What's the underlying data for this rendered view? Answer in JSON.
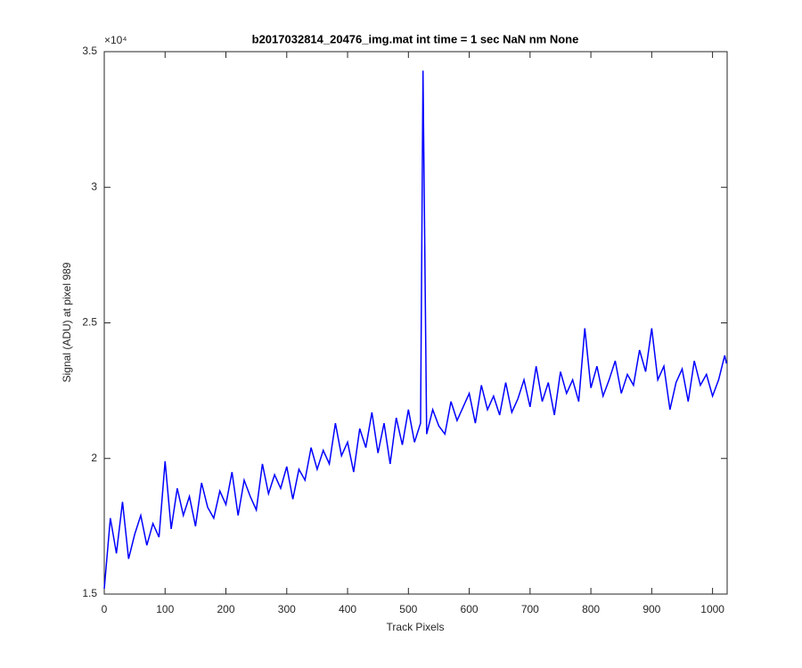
{
  "chart_data": {
    "type": "line",
    "title": "b2017032814_20476_img.mat int time = 1 sec  NaN nm None",
    "x_label": "Track Pixels",
    "y_label": "Signal (ADU) at pixel 989",
    "y_exponent_label": "×10⁴",
    "xlim": [
      0,
      1024
    ],
    "ylim": [
      15000,
      35000
    ],
    "xticks": [
      0,
      100,
      200,
      300,
      400,
      500,
      600,
      700,
      800,
      900,
      1000
    ],
    "yticks": [
      {
        "value": 15000,
        "label": "1.5"
      },
      {
        "value": 20000,
        "label": "2"
      },
      {
        "value": 25000,
        "label": "2.5"
      },
      {
        "value": 30000,
        "label": "3"
      },
      {
        "value": 35000,
        "label": "3.5"
      }
    ],
    "grid": false,
    "series": [
      {
        "color": "#0000ff",
        "x": [
          0,
          10,
          20,
          30,
          40,
          50,
          60,
          70,
          80,
          90,
          100,
          110,
          120,
          130,
          140,
          150,
          160,
          170,
          180,
          190,
          200,
          210,
          220,
          230,
          240,
          250,
          260,
          270,
          280,
          290,
          300,
          310,
          320,
          330,
          340,
          350,
          360,
          370,
          380,
          390,
          400,
          410,
          420,
          430,
          440,
          450,
          460,
          470,
          480,
          490,
          500,
          510,
          520,
          524,
          530,
          540,
          550,
          560,
          570,
          580,
          590,
          600,
          610,
          620,
          630,
          640,
          650,
          660,
          670,
          680,
          690,
          700,
          710,
          720,
          730,
          740,
          750,
          760,
          770,
          780,
          790,
          800,
          810,
          820,
          830,
          840,
          850,
          860,
          870,
          880,
          890,
          900,
          910,
          920,
          930,
          940,
          950,
          960,
          970,
          980,
          990,
          1000,
          1010,
          1020,
          1023
        ],
        "values": [
          15200,
          17800,
          16500,
          18400,
          16300,
          17200,
          17900,
          16800,
          17600,
          17100,
          19900,
          17400,
          18900,
          17900,
          18600,
          17500,
          19100,
          18200,
          17800,
          18800,
          18300,
          19500,
          17900,
          19200,
          18600,
          18100,
          19800,
          18700,
          19400,
          18900,
          19700,
          18500,
          19600,
          19200,
          20400,
          19600,
          20300,
          19800,
          21300,
          20100,
          20600,
          19500,
          21100,
          20400,
          21700,
          20200,
          21300,
          19800,
          21500,
          20500,
          21800,
          20600,
          21300,
          34300,
          20900,
          21800,
          21200,
          20900,
          22100,
          21400,
          21900,
          22400,
          21300,
          22700,
          21800,
          22300,
          21600,
          22800,
          21700,
          22200,
          22900,
          21900,
          23400,
          22100,
          22800,
          21600,
          23200,
          22400,
          22900,
          22100,
          24800,
          22600,
          23400,
          22300,
          22900,
          23600,
          22400,
          23100,
          22700,
          24000,
          23200,
          24800,
          22900,
          23400,
          21800,
          22800,
          23300,
          22100,
          23600,
          22700,
          23100,
          22300,
          22900,
          23800,
          23500
        ]
      }
    ]
  }
}
